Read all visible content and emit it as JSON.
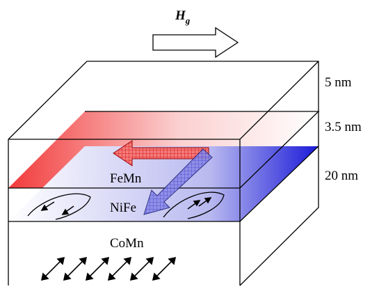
{
  "field_label": {
    "symbol": "H",
    "subscript": "g"
  },
  "thickness_labels": [
    "5 nm",
    "3.5 nm",
    "20 nm"
  ],
  "layers": [
    "FeMn",
    "NiFe",
    "CoMn"
  ]
}
